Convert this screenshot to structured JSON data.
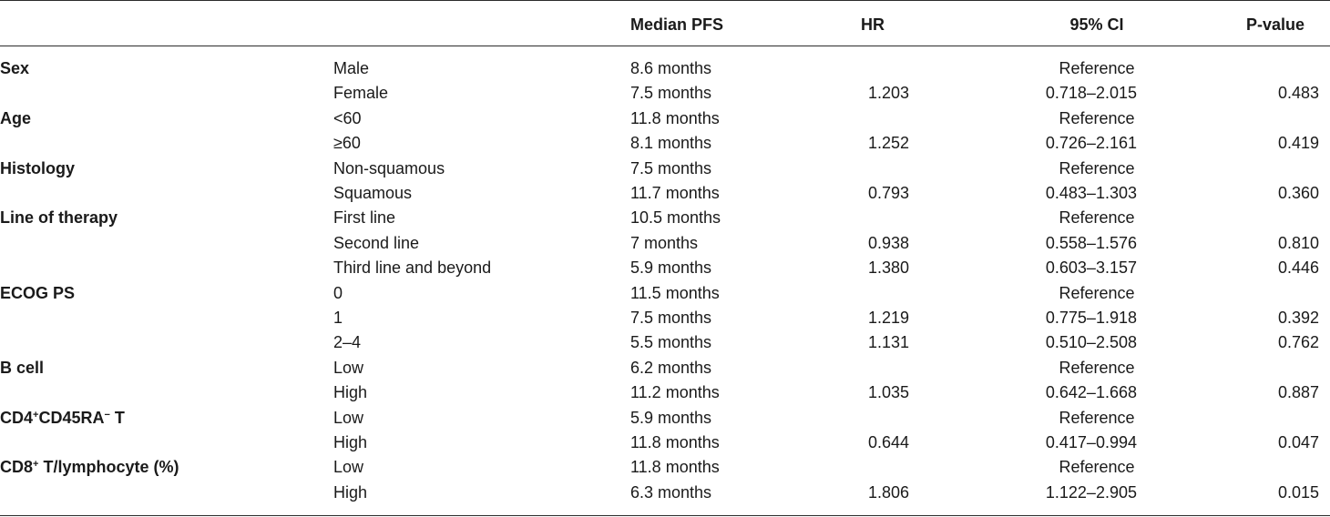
{
  "headers": {
    "variable": "",
    "level": "",
    "median_pfs": "Median PFS",
    "hr": "HR",
    "ci": "95% CI",
    "p_value": "P-value"
  },
  "rows": [
    {
      "variable": "Sex",
      "level": "Male",
      "median_pfs": "8.6 months",
      "hr": "",
      "ci": "Reference",
      "p": ""
    },
    {
      "variable": "",
      "level": "Female",
      "median_pfs": "7.5 months",
      "hr": "1.203",
      "ci": "0.718–2.015",
      "p": "0.483"
    },
    {
      "variable": "Age",
      "level": "<60",
      "median_pfs": "11.8 months",
      "hr": "",
      "ci": "Reference",
      "p": ""
    },
    {
      "variable": "",
      "level": "≥60",
      "median_pfs": "8.1 months",
      "hr": "1.252",
      "ci": "0.726–2.161",
      "p": "0.419"
    },
    {
      "variable": "Histology",
      "level": "Non-squamous",
      "median_pfs": "7.5 months",
      "hr": "",
      "ci": "Reference",
      "p": ""
    },
    {
      "variable": "",
      "level": "Squamous",
      "median_pfs": "11.7 months",
      "hr": "0.793",
      "ci": "0.483–1.303",
      "p": "0.360"
    },
    {
      "variable": "Line of therapy",
      "level": "First line",
      "median_pfs": "10.5 months",
      "hr": "",
      "ci": "Reference",
      "p": ""
    },
    {
      "variable": "",
      "level": "Second line",
      "median_pfs": "7 months",
      "hr": "0.938",
      "ci": "0.558–1.576",
      "p": "0.810"
    },
    {
      "variable": "",
      "level": "Third line and beyond",
      "median_pfs": "5.9 months",
      "hr": "1.380",
      "ci": "0.603–3.157",
      "p": "0.446"
    },
    {
      "variable": "ECOG PS",
      "level": "0",
      "median_pfs": "11.5 months",
      "hr": "",
      "ci": "Reference",
      "p": ""
    },
    {
      "variable": "",
      "level": "1",
      "median_pfs": "7.5 months",
      "hr": "1.219",
      "ci": "0.775–1.918",
      "p": "0.392"
    },
    {
      "variable": "",
      "level": "2–4",
      "median_pfs": "5.5 months",
      "hr": "1.131",
      "ci": "0.510–2.508",
      "p": "0.762"
    },
    {
      "variable": "B cell",
      "level": "Low",
      "median_pfs": "6.2 months",
      "hr": "",
      "ci": "Reference",
      "p": ""
    },
    {
      "variable": "",
      "level": "High",
      "median_pfs": "11.2 months",
      "hr": "1.035",
      "ci": "0.642–1.668",
      "p": "0.887"
    },
    {
      "variable": "CD4+CD45RA− T",
      "level": "Low",
      "median_pfs": "5.9 months",
      "hr": "",
      "ci": "Reference",
      "p": ""
    },
    {
      "variable": "",
      "level": "High",
      "median_pfs": "11.8 months",
      "hr": "0.644",
      "ci": "0.417–0.994",
      "p": "0.047"
    },
    {
      "variable": "CD8+ T/lymphocyte (%)",
      "level": "Low",
      "median_pfs": "11.8 months",
      "hr": "",
      "ci": "Reference",
      "p": ""
    },
    {
      "variable": "",
      "level": "High",
      "median_pfs": "6.3 months",
      "hr": "1.806",
      "ci": "1.122–2.905",
      "p": "0.015"
    }
  ]
}
